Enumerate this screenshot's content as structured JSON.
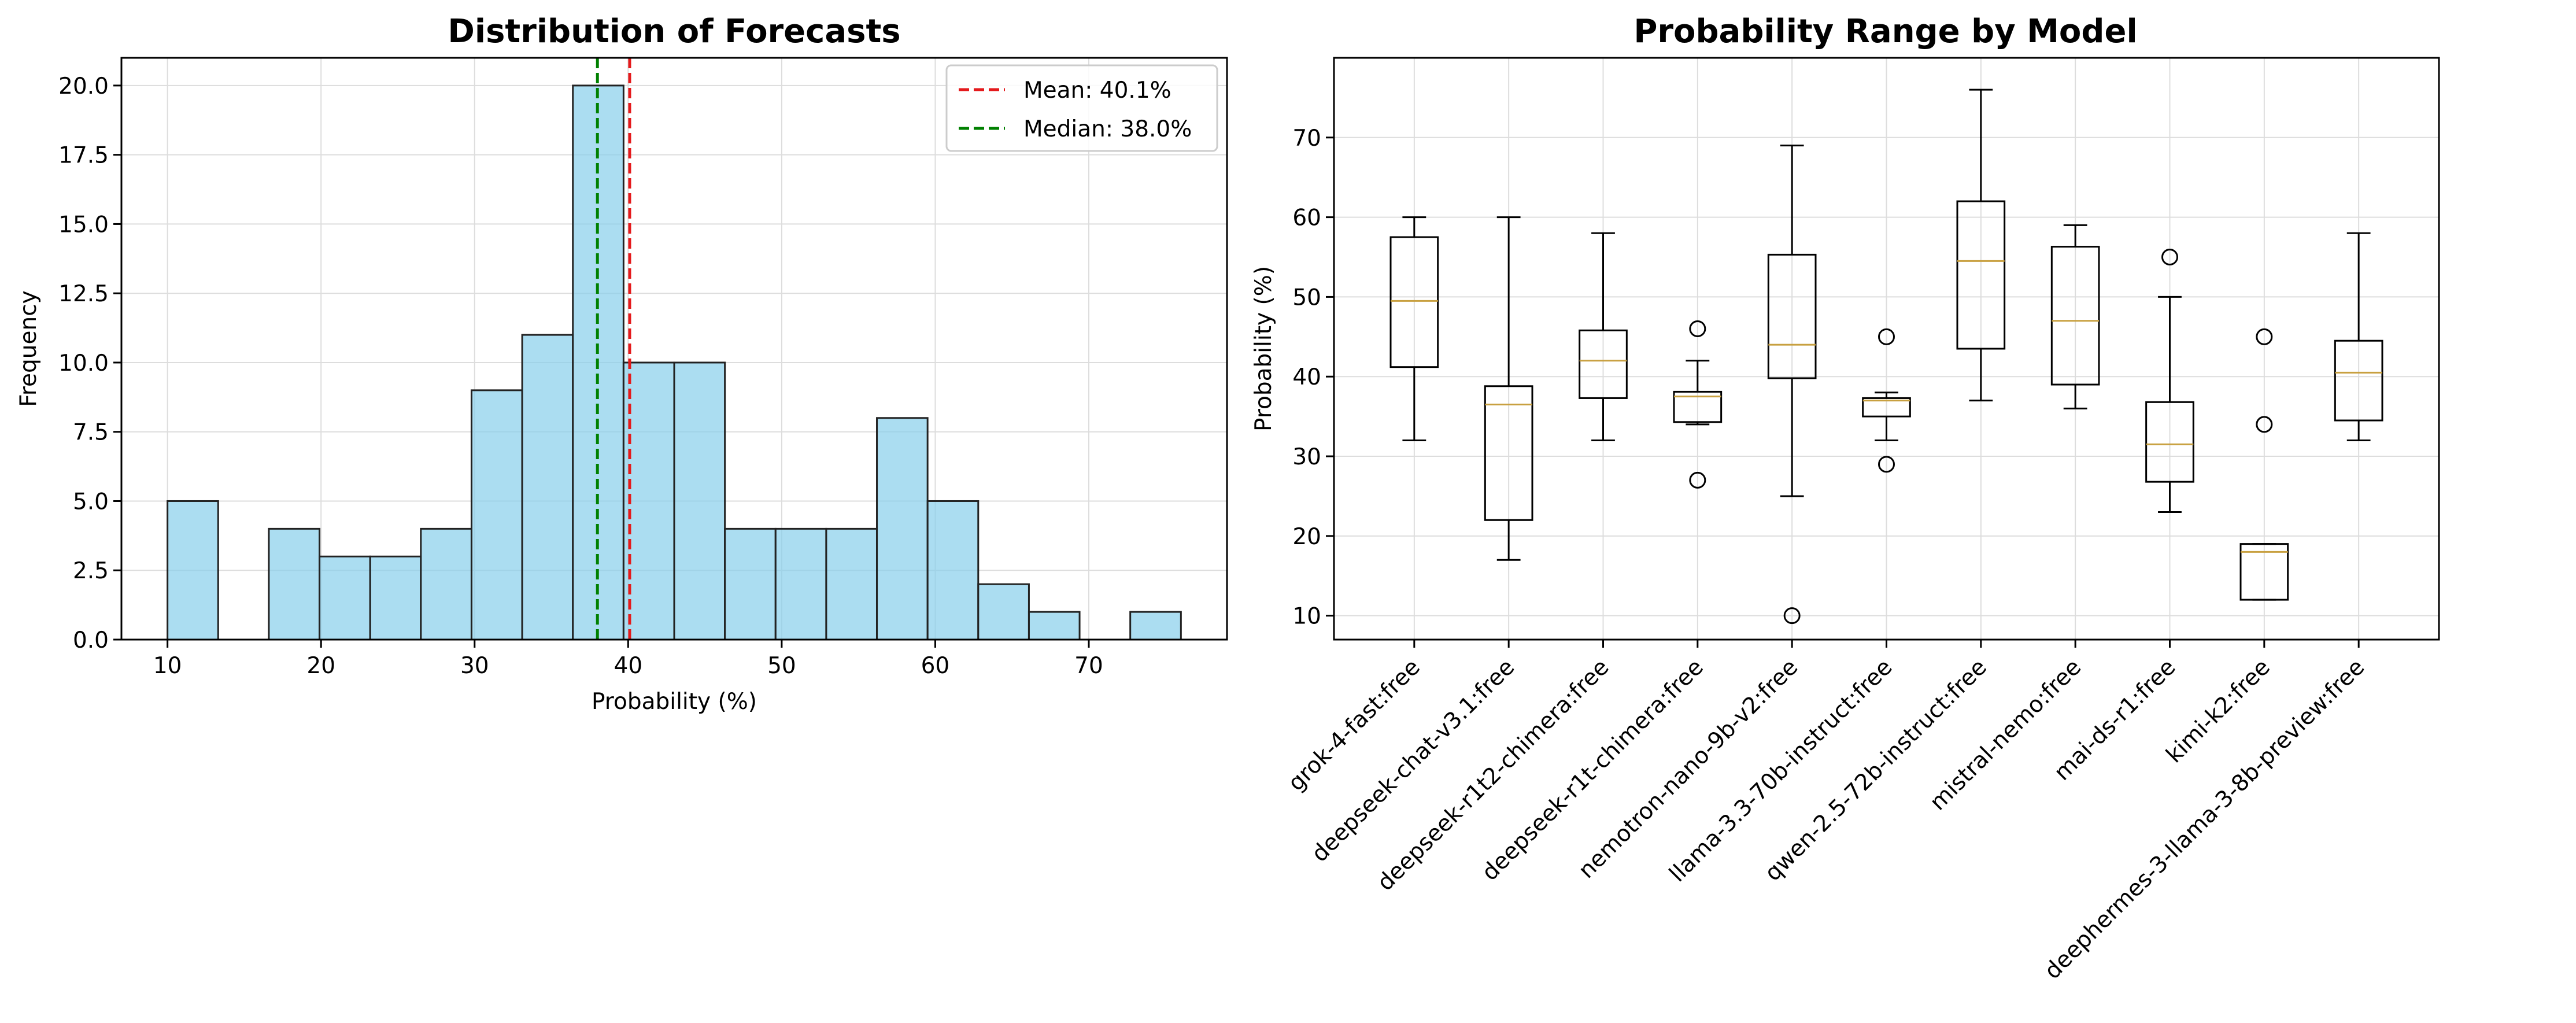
{
  "chart_data": [
    {
      "type": "histogram",
      "title": "Distribution of Forecasts",
      "xlabel": "Probability (%)",
      "ylabel": "Frequency",
      "xlim": [
        7,
        79
      ],
      "ylim": [
        0,
        21
      ],
      "xticks": [
        10,
        20,
        30,
        40,
        50,
        60,
        70
      ],
      "yticks": [
        0.0,
        2.5,
        5.0,
        7.5,
        10.0,
        12.5,
        15.0,
        17.5,
        20.0
      ],
      "bins": [
        {
          "x0": 10.0,
          "x1": 13.3,
          "count": 5
        },
        {
          "x0": 13.3,
          "x1": 16.6,
          "count": 0
        },
        {
          "x0": 16.6,
          "x1": 19.9,
          "count": 4
        },
        {
          "x0": 19.9,
          "x1": 23.2,
          "count": 3
        },
        {
          "x0": 23.2,
          "x1": 26.5,
          "count": 3
        },
        {
          "x0": 26.5,
          "x1": 29.8,
          "count": 4
        },
        {
          "x0": 29.8,
          "x1": 33.1,
          "count": 9
        },
        {
          "x0": 33.1,
          "x1": 36.4,
          "count": 11
        },
        {
          "x0": 36.4,
          "x1": 39.7,
          "count": 20
        },
        {
          "x0": 39.7,
          "x1": 43.0,
          "count": 10
        },
        {
          "x0": 43.0,
          "x1": 46.3,
          "count": 10
        },
        {
          "x0": 46.3,
          "x1": 49.6,
          "count": 4
        },
        {
          "x0": 49.6,
          "x1": 52.9,
          "count": 4
        },
        {
          "x0": 52.9,
          "x1": 56.2,
          "count": 4
        },
        {
          "x0": 56.2,
          "x1": 59.5,
          "count": 8
        },
        {
          "x0": 59.5,
          "x1": 62.8,
          "count": 5
        },
        {
          "x0": 62.8,
          "x1": 66.1,
          "count": 2
        },
        {
          "x0": 66.1,
          "x1": 69.4,
          "count": 1
        },
        {
          "x0": 69.4,
          "x1": 72.7,
          "count": 0
        },
        {
          "x0": 72.7,
          "x1": 76.0,
          "count": 1
        }
      ],
      "bar_color": "#87ceeb",
      "mean_line": {
        "value": 40.1,
        "label": "Mean: 40.1%",
        "color": "#e41a1c"
      },
      "median_line": {
        "value": 38.0,
        "label": "Median: 38.0%",
        "color": "#008000"
      },
      "legend_position": "top-right",
      "grid": true
    },
    {
      "type": "boxplot",
      "title": "Probability Range by Model",
      "xlabel": "",
      "ylabel": "Probability (%)",
      "ylim": [
        7,
        80
      ],
      "yticks": [
        10,
        20,
        30,
        40,
        50,
        60,
        70
      ],
      "median_color": "#c8a040",
      "grid": true,
      "categories": [
        "grok-4-fast:free",
        "deepseek-chat-v3.1:free",
        "deepseek-r1t2-chimera:free",
        "deepseek-r1t-chimera:free",
        "nemotron-nano-9b-v2:free",
        "llama-3.3-70b-instruct:free",
        "qwen-2.5-72b-instruct:free",
        "mistral-nemo:free",
        "mai-ds-r1:free",
        "kimi-k2:free",
        "deephermes-3-llama-3-8b-preview:free"
      ],
      "boxes": [
        {
          "whislo": 32,
          "q1": 41.2,
          "med": 49.5,
          "q3": 57.5,
          "whishi": 60,
          "fliers": []
        },
        {
          "whislo": 17,
          "q1": 22,
          "med": 36.5,
          "q3": 38.8,
          "whishi": 60,
          "fliers": []
        },
        {
          "whislo": 32,
          "q1": 37.3,
          "med": 42,
          "q3": 45.8,
          "whishi": 58,
          "fliers": []
        },
        {
          "whislo": 34,
          "q1": 34.3,
          "med": 37.5,
          "q3": 38.1,
          "whishi": 42,
          "fliers": [
            27,
            46
          ]
        },
        {
          "whislo": 25,
          "q1": 39.8,
          "med": 44,
          "q3": 55.3,
          "whishi": 69,
          "fliers": [
            10
          ]
        },
        {
          "whislo": 32,
          "q1": 35,
          "med": 37,
          "q3": 37.3,
          "whishi": 38,
          "fliers": [
            29,
            45
          ]
        },
        {
          "whislo": 37,
          "q1": 43.5,
          "med": 54.5,
          "q3": 62,
          "whishi": 76,
          "fliers": []
        },
        {
          "whislo": 36,
          "q1": 39,
          "med": 47,
          "q3": 56.3,
          "whishi": 59,
          "fliers": []
        },
        {
          "whislo": 23,
          "q1": 26.8,
          "med": 31.5,
          "q3": 36.8,
          "whishi": 50,
          "fliers": [
            55
          ]
        },
        {
          "whislo": 12,
          "q1": 12,
          "med": 18,
          "q3": 19,
          "whishi": 19,
          "fliers": [
            34,
            45
          ]
        },
        {
          "whislo": 32,
          "q1": 34.5,
          "med": 40.5,
          "q3": 44.5,
          "whishi": 58,
          "fliers": []
        }
      ]
    }
  ]
}
